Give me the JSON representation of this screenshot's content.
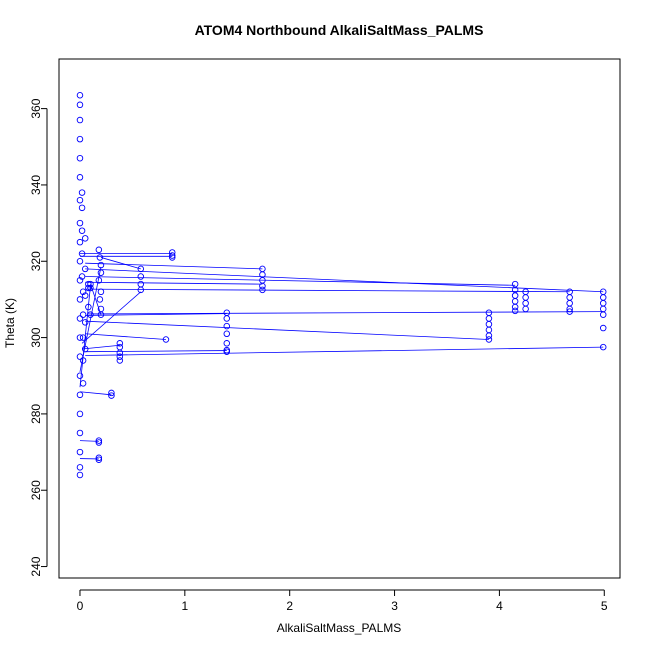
{
  "chart_data": {
    "type": "scatter",
    "title": "ATOM4 Northbound AlkaliSaltMass_PALMS",
    "xlabel": "AlkaliSaltMass_PALMS",
    "ylabel": "Theta (K)",
    "xlim": [
      -0.2,
      5.15
    ],
    "ylim": [
      237,
      373
    ],
    "xticks": [
      0,
      1,
      2,
      3,
      4,
      5
    ],
    "yticks": [
      240,
      260,
      280,
      300,
      320,
      340,
      360
    ],
    "grid": false,
    "color": "#0000ff",
    "marker": "open-circle",
    "connected": true,
    "series": [
      {
        "points": [
          [
            0.0,
            363.5
          ],
          [
            0.0,
            361.0
          ],
          [
            0.0,
            357.0
          ],
          [
            0.0,
            352.0
          ],
          [
            0.0,
            347.0
          ],
          [
            0.0,
            342.0
          ],
          [
            0.0,
            336.0
          ],
          [
            0.0,
            330.0
          ],
          [
            0.0,
            325.0
          ],
          [
            0.0,
            320.0
          ],
          [
            0.0,
            315.0
          ],
          [
            0.0,
            310.0
          ],
          [
            0.0,
            305.0
          ],
          [
            0.0,
            300.0
          ],
          [
            0.0,
            295.0
          ],
          [
            0.0,
            290.0
          ],
          [
            0.0,
            285.0
          ],
          [
            0.0,
            280.0
          ],
          [
            0.0,
            275.0
          ],
          [
            0.0,
            270.0
          ],
          [
            0.0,
            266.0
          ],
          [
            0.0,
            264.0
          ],
          [
            0.02,
            338.0
          ],
          [
            0.02,
            334.0
          ],
          [
            0.02,
            328.0
          ],
          [
            0.02,
            322.0
          ],
          [
            0.02,
            316.0
          ],
          [
            0.03,
            312.0
          ],
          [
            0.03,
            306.0
          ],
          [
            0.03,
            300.0
          ],
          [
            0.03,
            294.0
          ],
          [
            0.03,
            288.0
          ],
          [
            0.05,
            326.0
          ],
          [
            0.05,
            318.0
          ],
          [
            0.05,
            311.0
          ],
          [
            0.05,
            304.0
          ],
          [
            0.05,
            297.0
          ],
          [
            0.08,
            314.0
          ],
          [
            0.08,
            313.0
          ],
          [
            0.1,
            314.0
          ],
          [
            0.1,
            313.0
          ],
          [
            0.08,
            308.0
          ],
          [
            0.1,
            306.0
          ],
          [
            0.18,
            323.0
          ],
          [
            0.19,
            321.0
          ],
          [
            0.2,
            319.0
          ],
          [
            0.2,
            317.0
          ],
          [
            0.18,
            315.0
          ],
          [
            0.2,
            312.0
          ],
          [
            0.19,
            310.0
          ],
          [
            0.2,
            307.5
          ],
          [
            0.2,
            306.0
          ],
          [
            0.3,
            285.5
          ],
          [
            0.3,
            284.8
          ],
          [
            0.18,
            273.0
          ],
          [
            0.18,
            272.5
          ],
          [
            0.18,
            268.5
          ],
          [
            0.18,
            268.0
          ],
          [
            0.38,
            298.5
          ],
          [
            0.38,
            297.5
          ],
          [
            0.38,
            296.0
          ],
          [
            0.38,
            295.0
          ],
          [
            0.38,
            294.0
          ],
          [
            0.58,
            318.0
          ],
          [
            0.58,
            316.0
          ],
          [
            0.58,
            314.0
          ],
          [
            0.58,
            312.5
          ],
          [
            0.82,
            299.5
          ],
          [
            0.88,
            322.3
          ],
          [
            0.88,
            321.5
          ],
          [
            0.88,
            321.0
          ],
          [
            1.4,
            306.5
          ],
          [
            1.4,
            305.0
          ],
          [
            1.4,
            303.0
          ],
          [
            1.4,
            301.0
          ],
          [
            1.4,
            298.5
          ],
          [
            1.4,
            296.7
          ],
          [
            1.4,
            296.3
          ],
          [
            1.74,
            318.0
          ],
          [
            1.74,
            316.5
          ],
          [
            1.74,
            315.0
          ],
          [
            1.74,
            313.5
          ],
          [
            1.74,
            312.5
          ],
          [
            3.9,
            306.5
          ],
          [
            3.9,
            305.0
          ],
          [
            3.9,
            303.5
          ],
          [
            3.9,
            302.0
          ],
          [
            3.9,
            300.5
          ],
          [
            3.9,
            299.5
          ],
          [
            4.15,
            314.0
          ],
          [
            4.15,
            312.5
          ],
          [
            4.15,
            311.0
          ],
          [
            4.15,
            309.5
          ],
          [
            4.15,
            308.0
          ],
          [
            4.15,
            307.0
          ],
          [
            4.25,
            312.0
          ],
          [
            4.25,
            310.5
          ],
          [
            4.25,
            309.0
          ],
          [
            4.25,
            307.5
          ],
          [
            4.67,
            312.0
          ],
          [
            4.67,
            310.5
          ],
          [
            4.67,
            309.0
          ],
          [
            4.67,
            307.5
          ],
          [
            4.67,
            306.8
          ],
          [
            4.99,
            312.0
          ],
          [
            4.99,
            310.5
          ],
          [
            4.99,
            309.0
          ],
          [
            4.99,
            307.5
          ],
          [
            4.99,
            306.0
          ],
          [
            4.99,
            302.5
          ],
          [
            4.99,
            297.5
          ]
        ],
        "lines": [
          [
            [
              0.0,
              322.0
            ],
            [
              0.88,
              322.0
            ]
          ],
          [
            [
              0.0,
              321.3
            ],
            [
              0.88,
              321.3
            ]
          ],
          [
            [
              0.05,
              319.5
            ],
            [
              1.74,
              318.0
            ]
          ],
          [
            [
              0.05,
              318.0
            ],
            [
              4.99,
              312.0
            ]
          ],
          [
            [
              0.05,
              316.0
            ],
            [
              4.15,
              313.7
            ]
          ],
          [
            [
              0.05,
              314.5
            ],
            [
              1.74,
              314.0
            ]
          ],
          [
            [
              0.05,
              312.7
            ],
            [
              4.67,
              312.0
            ]
          ],
          [
            [
              0.08,
              306.2
            ],
            [
              4.99,
              306.8
            ]
          ],
          [
            [
              0.05,
              305.8
            ],
            [
              1.4,
              306.3
            ]
          ],
          [
            [
              0.05,
              304.3
            ],
            [
              3.9,
              299.5
            ]
          ],
          [
            [
              0.05,
              301.0
            ],
            [
              0.82,
              299.5
            ]
          ],
          [
            [
              0.05,
              296.3
            ],
            [
              1.4,
              296.6
            ]
          ],
          [
            [
              0.05,
              295.3
            ],
            [
              4.99,
              297.5
            ]
          ],
          [
            [
              0.02,
              298.5
            ],
            [
              0.58,
              312.0
            ]
          ],
          [
            [
              0.0,
              285.8
            ],
            [
              0.3,
              285.0
            ]
          ],
          [
            [
              0.0,
              273.0
            ],
            [
              0.18,
              272.8
            ]
          ],
          [
            [
              0.0,
              268.3
            ],
            [
              0.18,
              268.2
            ]
          ],
          [
            [
              0.0,
              291.0
            ],
            [
              0.2,
              318.5
            ]
          ],
          [
            [
              0.0,
              287.0
            ],
            [
              0.1,
              313.5
            ]
          ],
          [
            [
              0.1,
              314.0
            ],
            [
              0.2,
              306.0
            ]
          ],
          [
            [
              0.2,
              321.0
            ],
            [
              0.58,
              318.0
            ]
          ],
          [
            [
              0.02,
              297.0
            ],
            [
              0.38,
              298.0
            ]
          ]
        ]
      }
    ]
  }
}
